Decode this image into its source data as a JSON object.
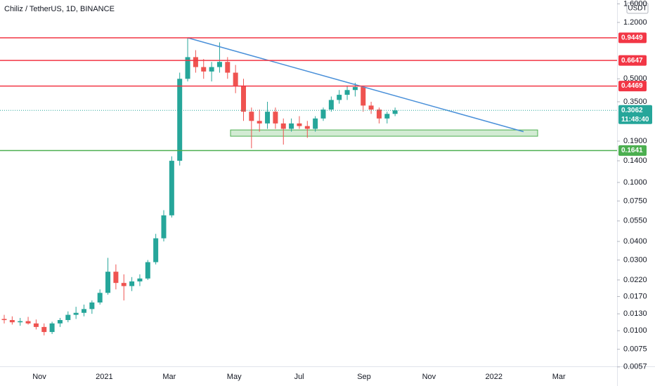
{
  "chart_data": {
    "type": "candlestick",
    "title": "Chiliz / TetherUS, 1D, BINANCE",
    "currency": "USDT",
    "log_scale": true,
    "ylim": [
      0.00575,
      1.7
    ],
    "yticks": [
      {
        "value": 1.6,
        "label": "1.6000"
      },
      {
        "value": 1.2,
        "label": "1.2000"
      },
      {
        "value": 0.5,
        "label": "0.5000"
      },
      {
        "value": 0.35,
        "label": "0.3500"
      },
      {
        "value": 0.19,
        "label": "0.1900"
      },
      {
        "value": 0.14,
        "label": "0.1400"
      },
      {
        "value": 0.1,
        "label": "0.1000"
      },
      {
        "value": 0.075,
        "label": "0.0750"
      },
      {
        "value": 0.055,
        "label": "0.0550"
      },
      {
        "value": 0.04,
        "label": "0.0400"
      },
      {
        "value": 0.03,
        "label": "0.0300"
      },
      {
        "value": 0.022,
        "label": "0.0220"
      },
      {
        "value": 0.017,
        "label": "0.0170"
      },
      {
        "value": 0.013,
        "label": "0.0130"
      },
      {
        "value": 0.01,
        "label": "0.0100"
      },
      {
        "value": 0.0075,
        "label": "0.0075"
      },
      {
        "value": 0.0057,
        "label": "0.0057"
      }
    ],
    "x_labels": [
      "Nov",
      "2021",
      "Mar",
      "May",
      "Jul",
      "Sep",
      "Nov",
      "2022",
      "Mar"
    ],
    "up_color": "#26a69a",
    "down_color": "#ef5350",
    "open": [
      0.012,
      0.0118,
      0.0114,
      0.0116,
      0.0112,
      0.0106,
      0.0098,
      0.0112,
      0.0118,
      0.0128,
      0.0132,
      0.014,
      0.0155,
      0.018,
      0.025,
      0.021,
      0.02,
      0.0215,
      0.0225,
      0.029,
      0.042,
      0.06,
      0.14,
      0.5,
      0.7,
      0.6,
      0.56,
      0.6,
      0.65,
      0.55,
      0.45,
      0.3,
      0.26,
      0.25,
      0.3,
      0.25,
      0.23,
      0.25,
      0.24,
      0.23,
      0.27,
      0.31,
      0.36,
      0.39,
      0.42,
      0.44,
      0.33,
      0.31,
      0.27,
      0.29
    ],
    "high": [
      0.0128,
      0.0125,
      0.0122,
      0.0124,
      0.0119,
      0.0112,
      0.0115,
      0.0122,
      0.0135,
      0.0145,
      0.015,
      0.016,
      0.019,
      0.031,
      0.028,
      0.024,
      0.023,
      0.024,
      0.03,
      0.045,
      0.065,
      0.15,
      0.55,
      0.9449,
      0.78,
      0.68,
      0.65,
      0.88,
      0.7,
      0.62,
      0.5,
      0.32,
      0.31,
      0.35,
      0.32,
      0.27,
      0.27,
      0.28,
      0.26,
      0.28,
      0.32,
      0.38,
      0.42,
      0.45,
      0.47,
      0.45,
      0.35,
      0.32,
      0.3,
      0.32
    ],
    "low": [
      0.0112,
      0.011,
      0.0108,
      0.011,
      0.0102,
      0.0093,
      0.0095,
      0.0106,
      0.0114,
      0.012,
      0.0125,
      0.013,
      0.015,
      0.0175,
      0.019,
      0.016,
      0.0185,
      0.02,
      0.022,
      0.028,
      0.04,
      0.058,
      0.13,
      0.48,
      0.55,
      0.5,
      0.48,
      0.55,
      0.5,
      0.4,
      0.26,
      0.17,
      0.22,
      0.23,
      0.23,
      0.18,
      0.22,
      0.23,
      0.2,
      0.22,
      0.26,
      0.3,
      0.34,
      0.36,
      0.38,
      0.3,
      0.29,
      0.25,
      0.25,
      0.28
    ],
    "close": [
      0.0118,
      0.0114,
      0.0116,
      0.0112,
      0.0106,
      0.0098,
      0.0112,
      0.0118,
      0.0128,
      0.0132,
      0.014,
      0.0155,
      0.018,
      0.025,
      0.021,
      0.02,
      0.0215,
      0.0225,
      0.029,
      0.042,
      0.06,
      0.14,
      0.5,
      0.7,
      0.6,
      0.56,
      0.6,
      0.65,
      0.55,
      0.45,
      0.3,
      0.26,
      0.25,
      0.3,
      0.25,
      0.23,
      0.25,
      0.24,
      0.23,
      0.27,
      0.31,
      0.36,
      0.39,
      0.42,
      0.44,
      0.33,
      0.31,
      0.27,
      0.29,
      0.3062
    ],
    "levels": [
      {
        "value": 0.9449,
        "color": "#f23645"
      },
      {
        "value": 0.6647,
        "color": "#f23645"
      },
      {
        "value": 0.4469,
        "color": "#f23645"
      },
      {
        "value": 0.1641,
        "color": "#4caf50"
      }
    ],
    "last_price": 0.3062,
    "countdown": "11:48:40",
    "trendline": {
      "values": [
        0.9449,
        0.22
      ],
      "color": "#4a90d9"
    },
    "zone": {
      "values": [
        0.205,
        0.226
      ],
      "color": "#4caf50"
    }
  }
}
